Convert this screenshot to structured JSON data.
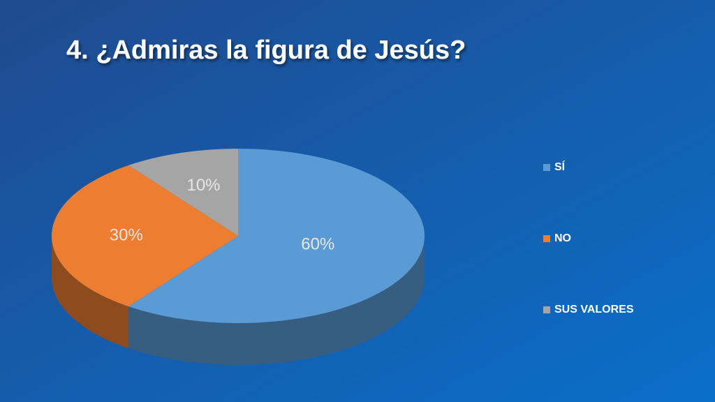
{
  "chart_data": {
    "type": "pie",
    "title": "4. ¿Admiras la figura de Jesús?",
    "categories": [
      "SÍ",
      "NO",
      "SUS VALORES"
    ],
    "values": [
      60,
      30,
      10
    ],
    "value_labels": [
      "60%",
      "30%",
      "10%"
    ],
    "colors": [
      "#5b9bd5",
      "#ed7d31",
      "#a5a5a5"
    ],
    "legend": "right"
  }
}
